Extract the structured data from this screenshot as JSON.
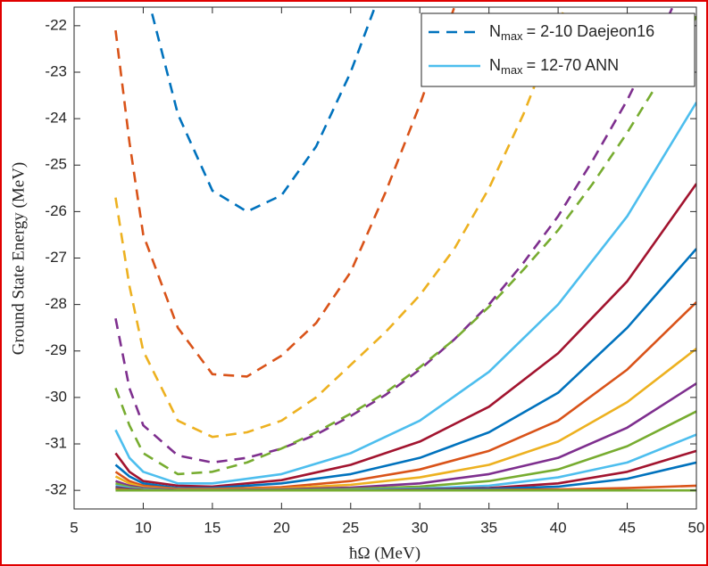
{
  "chart_data": {
    "type": "line",
    "xlabel": "ħΩ (MeV)",
    "ylabel": "Ground State Energy (MeV)",
    "xlim": [
      5,
      50
    ],
    "xticks": [
      5,
      10,
      15,
      20,
      25,
      30,
      35,
      40,
      45,
      50
    ],
    "ylim": [
      -32.4,
      -21.6
    ],
    "yticks": [
      -22,
      -23,
      -24,
      -25,
      -26,
      -27,
      -28,
      -29,
      -30,
      -31,
      -32
    ],
    "grid": false,
    "legend_position": "upper right",
    "legend": [
      {
        "symbol": "N",
        "sub": "max",
        "text": "= 2-10 Daejeon16",
        "style": "dashed",
        "color": "#0072BD"
      },
      {
        "symbol": "N",
        "sub": "max",
        "text": "= 12-70 ANN",
        "style": "solid",
        "color": "#4DBEEE"
      }
    ],
    "series": [
      {
        "style": "dashed",
        "color": "#0072BD",
        "x": [
          8,
          9,
          10,
          12.5,
          15,
          17.5,
          20,
          22.5,
          25,
          27.5,
          30,
          32.5,
          35,
          37.5,
          40,
          42.5,
          45,
          47.5,
          50
        ],
        "values": [
          null,
          null,
          -21.0,
          -23.9,
          -25.55,
          -26.0,
          -25.65,
          -24.6,
          -23.0,
          -21.0,
          null,
          null,
          null,
          null,
          null,
          null,
          null,
          null,
          null
        ]
      },
      {
        "style": "dashed",
        "color": "#D95319",
        "x": [
          8,
          9,
          10,
          12.5,
          15,
          17.5,
          20,
          22.5,
          25,
          27.5,
          30,
          32.5,
          35,
          37.5,
          40,
          42.5,
          45,
          47.5,
          50
        ],
        "values": [
          -22.1,
          -24.5,
          -26.5,
          -28.5,
          -29.5,
          -29.55,
          -29.1,
          -28.4,
          -27.3,
          -25.6,
          -23.7,
          -21.6,
          null,
          null,
          null,
          null,
          null,
          null,
          null
        ]
      },
      {
        "style": "dashed",
        "color": "#EDB120",
        "x": [
          8,
          9,
          10,
          12.5,
          15,
          17.5,
          20,
          22.5,
          25,
          27.5,
          30,
          32.5,
          35,
          37.5,
          40,
          42.5,
          45,
          47.5,
          50
        ],
        "values": [
          -25.7,
          -27.6,
          -29.0,
          -30.5,
          -30.85,
          -30.75,
          -30.5,
          -30.0,
          -29.3,
          -28.6,
          -27.8,
          -26.8,
          -25.5,
          -23.9,
          -22.0,
          -20.0,
          null,
          null,
          null
        ]
      },
      {
        "style": "dashed",
        "color": "#7E2F8E",
        "x": [
          8,
          9,
          10,
          12.5,
          15,
          17.5,
          20,
          22.5,
          25,
          27.5,
          30,
          32.5,
          35,
          37.5,
          40,
          42.5,
          45,
          47.5,
          50
        ],
        "values": [
          -28.3,
          -29.8,
          -30.6,
          -31.25,
          -31.4,
          -31.3,
          -31.1,
          -30.8,
          -30.4,
          -29.95,
          -29.4,
          -28.75,
          -28.0,
          -27.1,
          -26.1,
          -24.9,
          -23.6,
          -22.1,
          -20.5
        ]
      },
      {
        "style": "dashed",
        "color": "#77AC30",
        "x": [
          8,
          9,
          10,
          12.5,
          15,
          17.5,
          20,
          22.5,
          25,
          27.5,
          30,
          32.5,
          35,
          37.5,
          40,
          42.5,
          45,
          47.5,
          50
        ],
        "values": [
          -29.8,
          -30.6,
          -31.2,
          -31.65,
          -31.6,
          -31.4,
          -31.1,
          -30.75,
          -30.35,
          -29.9,
          -29.35,
          -28.75,
          -28.05,
          -27.25,
          -26.4,
          -25.4,
          -24.3,
          -23.1,
          -21.8
        ]
      },
      {
        "style": "solid",
        "color": "#4DBEEE",
        "x": [
          8,
          9,
          10,
          12.5,
          15,
          20,
          25,
          30,
          35,
          40,
          45,
          50
        ],
        "values": [
          -30.7,
          -31.3,
          -31.6,
          -31.85,
          -31.85,
          -31.65,
          -31.2,
          -30.5,
          -29.45,
          -28.0,
          -26.1,
          -23.65
        ]
      },
      {
        "style": "solid",
        "color": "#A2142F",
        "x": [
          8,
          9,
          10,
          12.5,
          15,
          20,
          25,
          30,
          35,
          40,
          45,
          50
        ],
        "values": [
          -31.2,
          -31.6,
          -31.8,
          -31.9,
          -31.92,
          -31.78,
          -31.45,
          -30.95,
          -30.2,
          -29.05,
          -27.5,
          -25.4
        ]
      },
      {
        "style": "solid",
        "color": "#0072BD",
        "x": [
          8,
          9,
          10,
          12.5,
          15,
          20,
          25,
          30,
          35,
          40,
          45,
          50
        ],
        "values": [
          -31.45,
          -31.7,
          -31.85,
          -31.95,
          -31.95,
          -31.85,
          -31.65,
          -31.3,
          -30.75,
          -29.9,
          -28.5,
          -26.8
        ]
      },
      {
        "style": "solid",
        "color": "#D95319",
        "x": [
          8,
          9,
          10,
          12.5,
          15,
          20,
          25,
          30,
          35,
          40,
          45,
          50
        ],
        "values": [
          -31.6,
          -31.8,
          -31.9,
          -31.97,
          -31.97,
          -31.93,
          -31.8,
          -31.55,
          -31.15,
          -30.5,
          -29.4,
          -27.95
        ]
      },
      {
        "style": "solid",
        "color": "#EDB120",
        "x": [
          8,
          9,
          10,
          12.5,
          15,
          20,
          25,
          30,
          35,
          40,
          45,
          50
        ],
        "values": [
          -31.7,
          -31.85,
          -31.93,
          -31.98,
          -31.98,
          -31.96,
          -31.88,
          -31.72,
          -31.45,
          -30.95,
          -30.1,
          -28.95
        ]
      },
      {
        "style": "solid",
        "color": "#7E2F8E",
        "x": [
          8,
          9,
          10,
          12.5,
          15,
          20,
          25,
          30,
          35,
          40,
          45,
          50
        ],
        "values": [
          -31.8,
          -31.9,
          -31.95,
          -31.99,
          -31.99,
          -31.98,
          -31.94,
          -31.85,
          -31.65,
          -31.3,
          -30.65,
          -29.7
        ]
      },
      {
        "style": "solid",
        "color": "#77AC30",
        "x": [
          8,
          9,
          10,
          12.5,
          15,
          20,
          25,
          30,
          35,
          40,
          45,
          50
        ],
        "values": [
          -31.85,
          -31.93,
          -31.97,
          -32.0,
          -32.0,
          -31.99,
          -31.97,
          -31.92,
          -31.8,
          -31.55,
          -31.05,
          -30.3
        ]
      },
      {
        "style": "solid",
        "color": "#4DBEEE",
        "x": [
          8,
          9,
          10,
          12.5,
          15,
          20,
          25,
          30,
          35,
          40,
          45,
          50
        ],
        "values": [
          -31.9,
          -31.95,
          -31.98,
          -32.0,
          -32.0,
          -32.0,
          -31.99,
          -31.96,
          -31.9,
          -31.72,
          -31.4,
          -30.8
        ]
      },
      {
        "style": "solid",
        "color": "#A2142F",
        "x": [
          8,
          9,
          10,
          12.5,
          15,
          20,
          25,
          30,
          35,
          40,
          45,
          50
        ],
        "values": [
          -31.93,
          -31.97,
          -31.99,
          -32.0,
          -32.0,
          -32.0,
          -32.0,
          -31.98,
          -31.95,
          -31.85,
          -31.6,
          -31.15
        ]
      },
      {
        "style": "solid",
        "color": "#0072BD",
        "x": [
          8,
          9,
          10,
          12.5,
          15,
          20,
          25,
          30,
          35,
          40,
          45,
          50
        ],
        "values": [
          -31.95,
          -31.98,
          -32.0,
          -32.0,
          -32.0,
          -32.0,
          -32.0,
          -31.99,
          -31.97,
          -31.92,
          -31.75,
          -31.4
        ]
      },
      {
        "style": "solid",
        "color": "#D95319",
        "x": [
          8,
          9,
          10,
          12.5,
          15,
          20,
          25,
          30,
          35,
          40,
          45,
          50
        ],
        "values": [
          -31.97,
          -31.99,
          -32.0,
          -32.0,
          -32.0,
          -32.0,
          -32.0,
          -32.0,
          -31.99,
          -31.98,
          -31.95,
          -31.9
        ]
      },
      {
        "style": "solid",
        "color": "#77AC30",
        "x": [
          8,
          9,
          10,
          12.5,
          15,
          20,
          25,
          30,
          35,
          40,
          45,
          50
        ],
        "values": [
          -32.0,
          -32.0,
          -32.0,
          -32.0,
          -32.0,
          -32.0,
          -32.0,
          -32.0,
          -32.0,
          -32.0,
          -32.0,
          -32.0
        ]
      }
    ]
  }
}
